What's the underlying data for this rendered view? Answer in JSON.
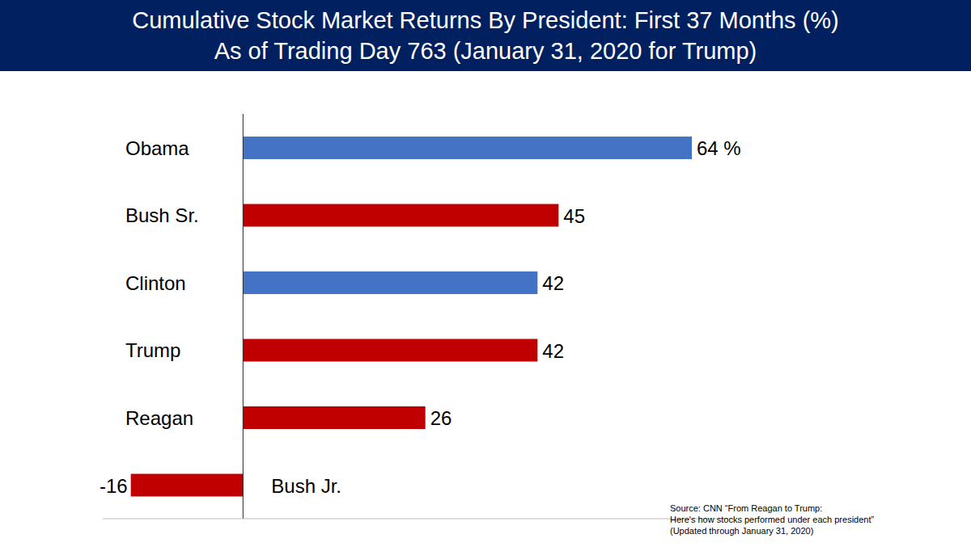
{
  "chart_data": {
    "type": "bar",
    "orientation": "horizontal",
    "title": "Cumulative Stock Market Returns By President:  First 37 Months (%)",
    "subtitle": "As of Trading Day 763 (January 31, 2020 for Trump)",
    "categories": [
      "Obama",
      "Bush Sr.",
      "Clinton",
      "Trump",
      "Reagan",
      "Bush Jr."
    ],
    "values": [
      64,
      45,
      42,
      42,
      26,
      -16
    ],
    "value_labels": [
      "64 %",
      "45",
      "42",
      "42",
      "26",
      "-16"
    ],
    "colors": [
      "#4472c4",
      "#c00000",
      "#4472c4",
      "#c00000",
      "#c00000",
      "#c00000"
    ],
    "xlim": [
      -20,
      70
    ],
    "xticks": [
      0
    ],
    "tick_labels": "y",
    "data_labels": true,
    "annotations": [
      "Source:  CNN “From Reagan to Trump:",
      "Here's how stocks performed under each president”",
      "(Updated through January 31, 2020)"
    ]
  }
}
